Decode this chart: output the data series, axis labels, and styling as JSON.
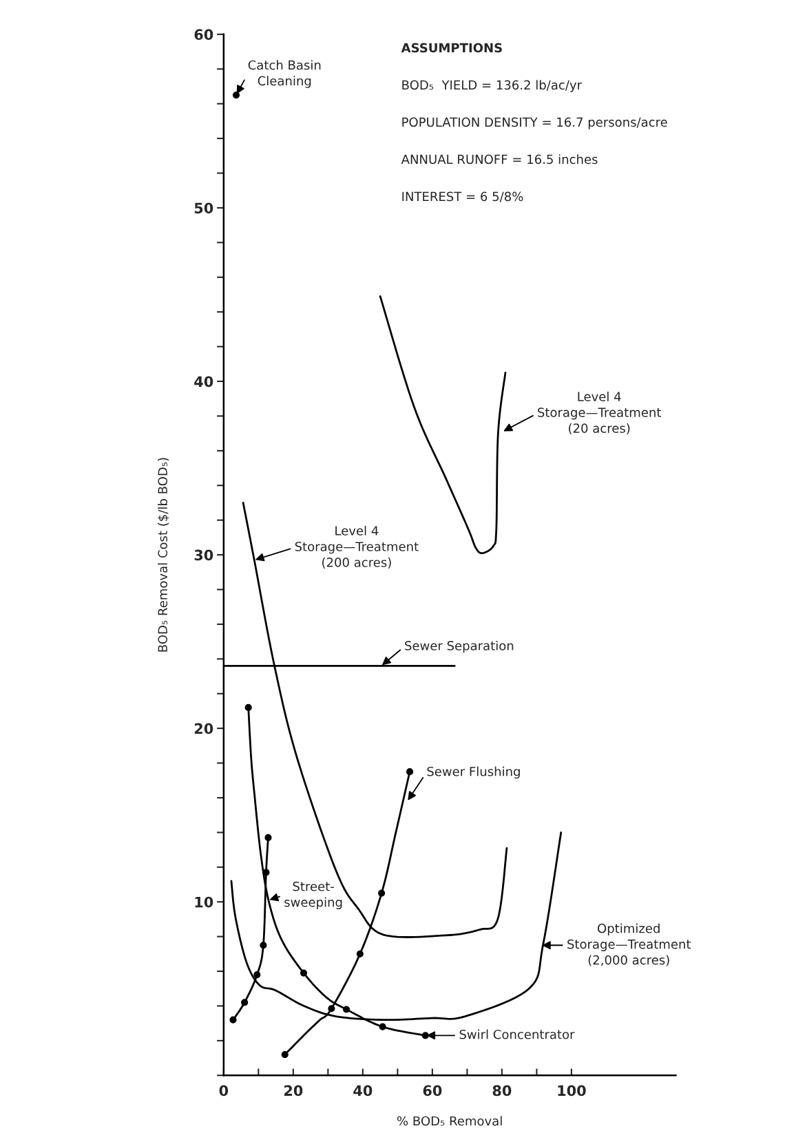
{
  "chart_data": {
    "type": "line",
    "xlabel": "% BOD₅ Removal",
    "ylabel": "BOD₅ Removal Cost ($/lb BOD₅)",
    "xlim": [
      0,
      130
    ],
    "ylim": [
      0,
      60
    ],
    "xticks": [
      0,
      {
        "value": 10,
        "label": null
      },
      20,
      {
        "value": 30,
        "label": null
      },
      40,
      {
        "value": 50,
        "label": null
      },
      60,
      {
        "value": 70,
        "label": null
      },
      80,
      {
        "value": 90,
        "label": null
      },
      100
    ],
    "yticks": [
      {
        "value": 0,
        "label": null
      },
      {
        "value": 2,
        "label": null
      },
      {
        "value": 4,
        "label": null
      },
      {
        "value": 6,
        "label": null
      },
      {
        "value": 8,
        "label": null
      },
      10,
      {
        "value": 12,
        "label": null
      },
      {
        "value": 14,
        "label": null
      },
      {
        "value": 16,
        "label": null
      },
      {
        "value": 18,
        "label": null
      },
      20,
      {
        "value": 22,
        "label": null
      },
      {
        "value": 24,
        "label": null
      },
      {
        "value": 26,
        "label": null
      },
      {
        "value": 28,
        "label": null
      },
      30,
      {
        "value": 32,
        "label": null
      },
      {
        "value": 34,
        "label": null
      },
      {
        "value": 36,
        "label": null
      },
      {
        "value": 38,
        "label": null
      },
      40,
      {
        "value": 42,
        "label": null
      },
      {
        "value": 44,
        "label": null
      },
      {
        "value": 46,
        "label": null
      },
      {
        "value": 48,
        "label": null
      },
      50,
      {
        "value": 52,
        "label": null
      },
      {
        "value": 54,
        "label": null
      },
      {
        "value": 56,
        "label": null
      },
      {
        "value": 58,
        "label": null
      },
      60
    ],
    "grid": false,
    "legend": false,
    "series": [
      {
        "color": "#000000",
        "x": [
          5.6,
          8.8,
          14.6,
          21.1,
          32.3,
          38.7,
          46,
          63.9,
          73.6,
          78.8,
          81.4
        ],
        "values": [
          33.0,
          29.7,
          23.6,
          18.3,
          11.8,
          9.6,
          8.1,
          8.07,
          8.4,
          9.0,
          13.1
        ]
      },
      {
        "color": "#000000",
        "x": [
          45.0,
          54.8,
          63.9,
          70.3,
          72.5,
          74.4,
          77.5,
          78.4,
          78.9,
          81.0
        ],
        "values": [
          44.9,
          38.5,
          34.4,
          31.5,
          30.4,
          30.1,
          30.5,
          31.5,
          37.0,
          40.5
        ]
      },
      {
        "color": "#000000",
        "x": [
          2.2,
          3.4,
          6.6,
          10.3,
          14.9,
          23.1,
          32.3,
          46,
          59.8,
          69.4,
          87.8,
          91.9,
          97
        ],
        "values": [
          11.2,
          9.1,
          6.5,
          5.2,
          4.9,
          4.0,
          3.4,
          3.2,
          3.3,
          3.4,
          5.0,
          7.6,
          14.0
        ]
      },
      {
        "color": "#000000",
        "x": [
          7.1,
          7.9,
          8.8,
          10.7,
          13,
          16.7,
          23.0,
          29.5,
          35.3,
          45.7,
          58
        ],
        "values": [
          21.2,
          18.3,
          16.3,
          12.7,
          10,
          7.8,
          5.9,
          4.5,
          3.8,
          2.8,
          2.3
        ]
      },
      {
        "color": "#000000",
        "x": [
          17.6,
          24,
          27.7,
          31,
          39.2,
          45.4,
          49.5,
          53.5
        ],
        "values": [
          1.2,
          2.5,
          3.2,
          3.85,
          7.0,
          10.5,
          14,
          17.5
        ]
      },
      {
        "color": "#000000",
        "x": [
          2.7,
          6.0,
          9.6,
          11.4,
          12.2,
          12.8,
          12.8
        ],
        "values": [
          3.2,
          4.2,
          5.8,
          7.5,
          11.7,
          13.7,
          13.7
        ]
      },
      {
        "color": "#000000",
        "x": [
          0,
          66.4
        ],
        "values": [
          23.6,
          23.6
        ]
      },
      {
        "type": "scatter",
        "color": "#000000",
        "marker": "circle",
        "x": [
          2.7,
          6.0,
          9.6,
          11.4,
          12.2,
          12.8,
          7.1,
          23.0,
          35.3,
          45.7,
          58,
          17.6,
          31,
          39.2,
          45.4,
          53.5
        ],
        "values": [
          3.2,
          4.2,
          5.8,
          7.5,
          11.7,
          13.7,
          21.2,
          5.9,
          3.8,
          2.8,
          2.3,
          1.2,
          3.85,
          7.0,
          10.5,
          17.5
        ]
      },
      {
        "type": "scatter",
        "color": "#000000",
        "marker": "circle",
        "x": [
          3.6
        ],
        "values": [
          56.5
        ]
      }
    ],
    "annotations": [
      {
        "text": "Catch Basin\nCleaning",
        "x": 3.6,
        "y": 56.5
      },
      {
        "text": "Level 4\nStorage—Treatment\n(20 acres)",
        "x": 80.2,
        "y": 37.1
      },
      {
        "text": "Level 4\nStorage—Treatment\n(200 acres)",
        "x": 8.8,
        "y": 29.7
      },
      {
        "text": "Sewer Separation",
        "x": 45.3,
        "y": 23.6
      },
      {
        "text": "Sewer Flushing",
        "x": 52.8,
        "y": 15.8
      },
      {
        "text": "Street-\nsweeping",
        "x": 12.9,
        "y": 10.1
      },
      {
        "text": "Optimized\nStorage—Treatment\n(2,000 acres)",
        "x": 91.2,
        "y": 7.5
      },
      {
        "text": "Swirl Concentrator",
        "x": 58,
        "y": 2.3
      },
      "ASSUMPTIONS",
      "BOD₅  YIELD = 136.2 lb/ac/yr",
      "POPULATION DENSITY = 16.7 persons/acre",
      "ANNUAL RUNOFF = 16.5 inches",
      "INTEREST = 6 5/8%"
    ]
  }
}
